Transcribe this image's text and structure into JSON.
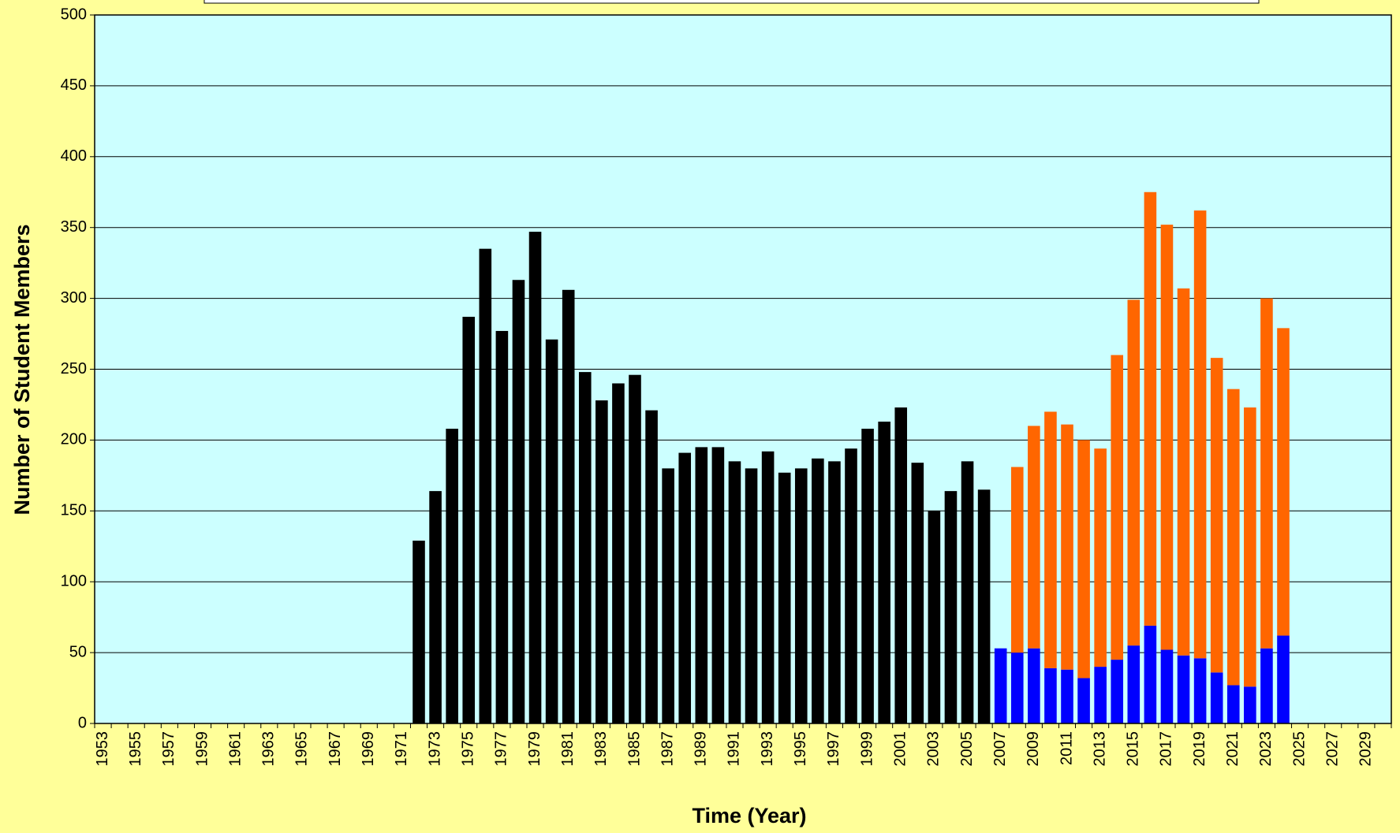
{
  "chart_data": {
    "type": "bar",
    "stacked": true,
    "x_label": "Time (Year)",
    "y_label": "Number of Student Members",
    "categories": [
      "1953",
      null,
      "1955",
      null,
      "1957",
      null,
      "1959",
      null,
      "1961",
      null,
      "1963",
      null,
      "1965",
      null,
      "1967",
      null,
      "1969",
      null,
      "1971",
      null,
      "1973",
      null,
      "1975",
      null,
      "1977",
      null,
      "1979",
      null,
      "1981",
      null,
      "1983",
      null,
      "1985",
      null,
      "1987",
      null,
      "1989",
      null,
      "1991",
      null,
      "1993",
      null,
      "1995",
      null,
      "1997",
      null,
      "1999",
      null,
      "2001",
      null,
      "2003",
      null,
      "2005",
      null,
      "2007",
      null,
      "2009",
      null,
      "2011",
      null,
      "2013",
      null,
      "2015",
      null,
      "2017",
      null,
      "2019",
      null,
      "2021",
      null,
      "2023",
      null,
      "2025",
      null,
      "2027",
      null,
      "2029",
      null
    ],
    "series": [
      {
        "color": "#000000",
        "values": [
          null,
          null,
          null,
          null,
          null,
          null,
          null,
          null,
          null,
          null,
          null,
          null,
          null,
          null,
          null,
          null,
          null,
          null,
          null,
          129,
          164,
          208,
          287,
          335,
          277,
          313,
          347,
          271,
          306,
          248,
          228,
          240,
          246,
          221,
          180,
          191,
          195,
          195,
          185,
          180,
          192,
          177,
          180,
          187,
          185,
          194,
          208,
          213,
          223,
          184,
          150,
          164,
          185,
          165,
          null,
          null,
          null,
          null,
          null,
          null,
          null,
          null,
          null,
          null,
          null,
          null,
          null,
          null,
          null,
          null,
          null,
          null,
          null,
          null,
          null,
          null,
          null,
          null
        ]
      },
      {
        "color": "#0000ff",
        "values": [
          null,
          null,
          null,
          null,
          null,
          null,
          null,
          null,
          null,
          null,
          null,
          null,
          null,
          null,
          null,
          null,
          null,
          null,
          null,
          null,
          null,
          null,
          null,
          null,
          null,
          null,
          null,
          null,
          null,
          null,
          null,
          null,
          null,
          null,
          null,
          null,
          null,
          null,
          null,
          null,
          null,
          null,
          null,
          null,
          null,
          null,
          null,
          null,
          null,
          null,
          null,
          null,
          null,
          null,
          53,
          50,
          53,
          39,
          38,
          32,
          40,
          45,
          55,
          69,
          52,
          48,
          46,
          36,
          27,
          26,
          53,
          62,
          null,
          null,
          null,
          null,
          null,
          null
        ]
      },
      {
        "color": "#ff6600",
        "values": [
          null,
          null,
          null,
          null,
          null,
          null,
          null,
          null,
          null,
          null,
          null,
          null,
          null,
          null,
          null,
          null,
          null,
          null,
          null,
          null,
          null,
          null,
          null,
          null,
          null,
          null,
          null,
          null,
          null,
          null,
          null,
          null,
          null,
          null,
          null,
          null,
          null,
          null,
          null,
          null,
          null,
          null,
          null,
          null,
          null,
          null,
          null,
          null,
          null,
          null,
          null,
          null,
          null,
          null,
          null,
          131,
          157,
          181,
          173,
          168,
          154,
          215,
          244,
          306,
          300,
          259,
          316,
          222,
          209,
          197,
          247,
          217,
          null,
          null,
          null,
          null,
          null,
          null
        ]
      }
    ],
    "ylim": [
      0,
      500
    ],
    "yticks": [
      0,
      50,
      100,
      150,
      200,
      250,
      300,
      350,
      400,
      450,
      500
    ],
    "grid": true
  }
}
